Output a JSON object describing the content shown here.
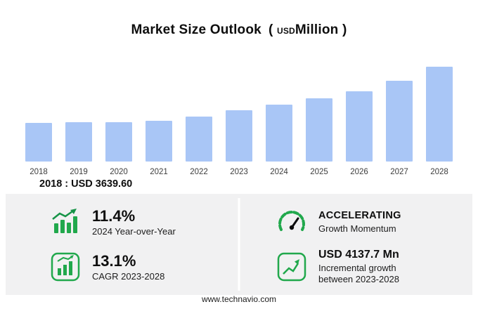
{
  "title": {
    "main": "Market Size Outlook",
    "open": "(",
    "currency": "USD",
    "unit": "Million",
    "close": ")"
  },
  "chart_data": {
    "type": "bar",
    "title": "Market Size Outlook (USD Million)",
    "categories": [
      "2018",
      "2019",
      "2020",
      "2021",
      "2022",
      "2023",
      "2024",
      "2025",
      "2026",
      "2027",
      "2028"
    ],
    "values": [
      3639.6,
      3760,
      3700,
      3870,
      4250,
      4864.4,
      5419,
      5980,
      6660,
      7640,
      9002.1
    ],
    "xlabel": "",
    "ylabel": "USD Million",
    "ylim": [
      0,
      9600
    ],
    "grid": false,
    "legend": "none",
    "bar_color": "#a9c6f6"
  },
  "base_year_value": "2018 : USD  3639.60",
  "stats": [
    {
      "icon": "bar-growth-icon",
      "value": "11.4%",
      "label": "2024 Year-over-Year"
    },
    {
      "icon": "speedometer-icon",
      "value": "ACCELERATING",
      "label": "Growth Momentum"
    },
    {
      "icon": "cagr-chart-icon",
      "value": "13.1%",
      "label": "CAGR 2023-2028"
    },
    {
      "icon": "incremental-growth-icon",
      "value": "USD 4137.7 Mn",
      "label": "Incremental growth between 2023-2028"
    }
  ],
  "footer": {
    "website": "www.technavio.com"
  },
  "colors": {
    "bar": "#a9c6f6",
    "green": "#21a84c",
    "panel": "#f1f1f2",
    "text": "#0e0e0e"
  }
}
